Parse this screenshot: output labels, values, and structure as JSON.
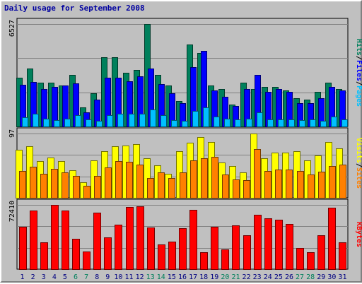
{
  "title": "Daily usage for September 2008",
  "colors": {
    "hits": "#00805c",
    "files": "#0000ff",
    "pages": "#00c0ff",
    "visits": "#ffff00",
    "sites": "#ff8000",
    "kbytes": "#ff0000",
    "weekend": "#00805c",
    "weekday": "#000080",
    "background": "#c0c0c0",
    "grid": "#808080"
  },
  "days": [
    "1",
    "2",
    "3",
    "4",
    "5",
    "6",
    "7",
    "8",
    "9",
    "10",
    "11",
    "12",
    "13",
    "14",
    "15",
    "16",
    "17",
    "18",
    "19",
    "20",
    "21",
    "22",
    "23",
    "24",
    "25",
    "26",
    "27",
    "28",
    "29",
    "30",
    "31"
  ],
  "weekend_days": [
    "6",
    "7",
    "13",
    "14",
    "20",
    "21",
    "27",
    "28"
  ],
  "chart_data": [
    {
      "type": "bar",
      "name": "hits-files-pages",
      "ymax_label": "6527",
      "ylim": [
        0,
        6527
      ],
      "legend": [
        {
          "label": "Pages",
          "color": "#00c0ff"
        },
        {
          "label": "Files",
          "color": "#0000ff"
        },
        {
          "label": "Hits",
          "color": "#00805c"
        }
      ],
      "series": [
        {
          "name": "Hits",
          "values": [
            3100,
            3700,
            2800,
            2800,
            2600,
            3300,
            1200,
            2100,
            4400,
            4400,
            3400,
            3600,
            6527,
            3300,
            2600,
            1600,
            5200,
            4700,
            2600,
            2400,
            1400,
            2800,
            2400,
            2500,
            2500,
            2300,
            1800,
            1700,
            2200,
            2800,
            2400
          ]
        },
        {
          "name": "Files",
          "values": [
            2650,
            2850,
            2400,
            2500,
            2600,
            2750,
            900,
            1700,
            3100,
            3100,
            2900,
            3200,
            3700,
            2700,
            2100,
            1500,
            3800,
            4800,
            2300,
            1900,
            1300,
            2400,
            3300,
            2200,
            2400,
            2200,
            1500,
            1500,
            1800,
            2500,
            2300
          ]
        },
        {
          "name": "Pages",
          "values": [
            600,
            800,
            500,
            400,
            500,
            700,
            450,
            350,
            700,
            800,
            800,
            800,
            1100,
            700,
            400,
            350,
            1000,
            1200,
            650,
            500,
            450,
            500,
            900,
            450,
            450,
            450,
            400,
            450,
            350,
            650,
            450
          ]
        }
      ]
    },
    {
      "type": "bar",
      "name": "visits-sites",
      "ymax_label": "97",
      "ylim": [
        0,
        97
      ],
      "legend": [
        {
          "label": "Sites",
          "color": "#ff8000"
        },
        {
          "label": "Visits",
          "color": "#ffff00"
        }
      ],
      "series": [
        {
          "name": "Visits",
          "values": [
            72,
            78,
            55,
            61,
            55,
            42,
            23,
            56,
            70,
            78,
            79,
            81,
            60,
            49,
            36,
            70,
            83,
            92,
            84,
            53,
            48,
            38,
            97,
            60,
            68,
            68,
            70,
            56,
            64,
            84,
            75
          ]
        },
        {
          "name": "Sites",
          "values": [
            40,
            47,
            36,
            44,
            38,
            33,
            18,
            33,
            46,
            55,
            54,
            50,
            30,
            38,
            30,
            38,
            56,
            60,
            62,
            35,
            28,
            27,
            74,
            41,
            43,
            43,
            40,
            35,
            39,
            48,
            50
          ]
        }
      ]
    },
    {
      "type": "bar",
      "name": "kbytes",
      "ymax_label": "72410",
      "ylim": [
        0,
        72410
      ],
      "legend": [
        {
          "label": "KBytes",
          "color": "#ff0000"
        }
      ],
      "series": [
        {
          "name": "KBytes",
          "values": [
            48000,
            66000,
            30000,
            72410,
            66000,
            34000,
            20000,
            64000,
            36000,
            50000,
            70000,
            71000,
            47000,
            28000,
            31000,
            46000,
            67000,
            19000,
            48000,
            22000,
            49000,
            38000,
            61000,
            57000,
            56000,
            51000,
            24000,
            19000,
            38000,
            69000,
            30000
          ]
        }
      ]
    }
  ]
}
